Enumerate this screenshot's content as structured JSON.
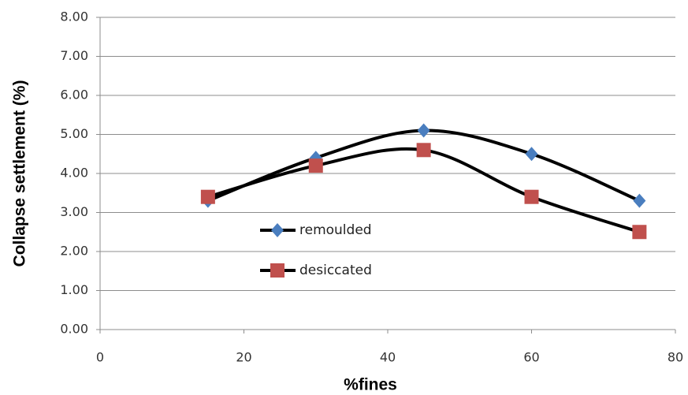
{
  "chart_data": {
    "type": "line",
    "x_label": "%fines",
    "y_label": "Collapse settlement (%)",
    "xlim": [
      0,
      80
    ],
    "xticks": [
      0,
      20,
      40,
      60,
      80
    ],
    "ylim": [
      0,
      8
    ],
    "yticks": [
      {
        "value": 0,
        "label": "0.00"
      },
      {
        "value": 1,
        "label": "1.00"
      },
      {
        "value": 2,
        "label": "2.00"
      },
      {
        "value": 3,
        "label": "3.00"
      },
      {
        "value": 4,
        "label": "4.00"
      },
      {
        "value": 5,
        "label": "5.00"
      },
      {
        "value": 6,
        "label": "6.00"
      },
      {
        "value": 7,
        "label": "7.00"
      },
      {
        "value": 8,
        "label": "8.00"
      }
    ],
    "grid": true,
    "smooth": true,
    "line_color": "#000000",
    "legend": "center-left",
    "x": [
      15,
      30,
      45,
      60,
      75
    ],
    "series": [
      {
        "name": "remoulded",
        "color": "#4a7ebf",
        "marker": "diamond",
        "values": [
          3.3,
          4.4,
          5.1,
          4.5,
          3.3
        ]
      },
      {
        "name": "desiccated",
        "color": "#c0504d",
        "marker": "square",
        "values": [
          3.4,
          4.2,
          4.6,
          3.4,
          2.5
        ]
      }
    ]
  }
}
